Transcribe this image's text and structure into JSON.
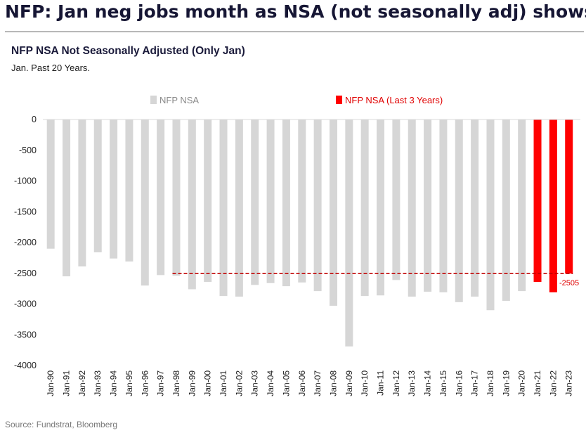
{
  "headline": "NFP: Jan neg jobs month as NSA (not seasonally adj) shows",
  "source": "Source: Fundstrat, Bloomberg",
  "colors": {
    "gray_bar": "#d6d6d6",
    "red_bar": "#ff0000",
    "reference_line": "#c00000",
    "headline": "#161634"
  },
  "chart_data": {
    "type": "bar",
    "title": "NFP NSA Not Seasonally Adjusted (Only Jan)",
    "subtitle": "Jan. Past 20 Years.",
    "xlabel": "",
    "ylabel": "",
    "ylim": [
      -4000,
      0
    ],
    "yticks": [
      0,
      -500,
      -1000,
      -1500,
      -2000,
      -2500,
      -3000,
      -3500,
      -4000
    ],
    "grid": false,
    "legend_position": "top",
    "categories": [
      "Jan-90",
      "Jan-91",
      "Jan-92",
      "Jan-93",
      "Jan-94",
      "Jan-95",
      "Jan-96",
      "Jan-97",
      "Jan-98",
      "Jan-99",
      "Jan-00",
      "Jan-01",
      "Jan-02",
      "Jan-03",
      "Jan-04",
      "Jan-05",
      "Jan-06",
      "Jan-07",
      "Jan-08",
      "Jan-09",
      "Jan-10",
      "Jan-11",
      "Jan-12",
      "Jan-13",
      "Jan-14",
      "Jan-15",
      "Jan-16",
      "Jan-17",
      "Jan-18",
      "Jan-19",
      "Jan-20",
      "Jan-21",
      "Jan-22",
      "Jan-23"
    ],
    "values": [
      -2100,
      -2550,
      -2390,
      -2160,
      -2260,
      -2310,
      -2700,
      -2530,
      -2540,
      -2760,
      -2640,
      -2870,
      -2880,
      -2690,
      -2660,
      -2710,
      -2650,
      -2790,
      -3030,
      -3690,
      -2870,
      -2860,
      -2610,
      -2880,
      -2800,
      -2810,
      -2970,
      -2880,
      -3100,
      -2950,
      -2790,
      -2640,
      -2810,
      -2505
    ],
    "series": [
      {
        "name": "NFP NSA",
        "color": "#d6d6d6",
        "first_index": 0,
        "last_index": 30
      },
      {
        "name": "NFP NSA (Last 3 Years)",
        "color": "#ff0000",
        "first_index": 31,
        "last_index": 33
      }
    ],
    "reference_line": {
      "value": -2505,
      "from_category": "Jan-98",
      "to_category": "Jan-23",
      "style": "dashed",
      "label": "-2505"
    }
  }
}
